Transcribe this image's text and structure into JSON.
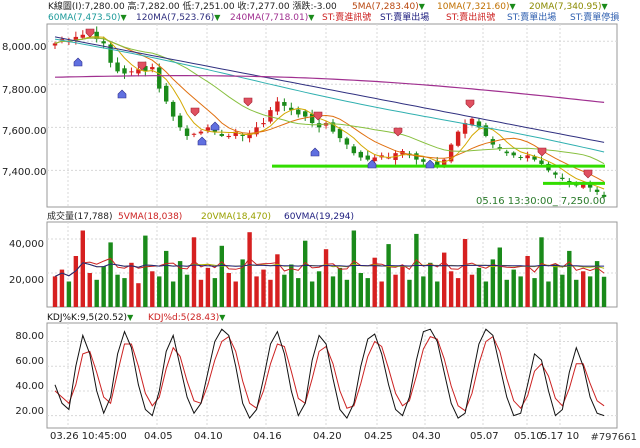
{
  "header": {
    "kline": "K線圖(I):7,280.00 高:7,282.00 低:7,251.00 收:7,277.00 漲跌:-3.00",
    "ma5": "5MA(7,283.40)",
    "ma10": "10MA(7,321.60)",
    "ma20": "20MA(7,340.95)",
    "ma60": "60MA(7,473.50)",
    "ma120": "120MA(7,523.76)",
    "ma240": "240MA(7,718.01)",
    "st1": "ST:賣進訊號",
    "st2": "ST:賣單出場",
    "st3": "ST:賣出訊號",
    "st4": "ST:賣單出場",
    "st5": "ST:賣單停損"
  },
  "volume_header": {
    "vol": "成交量(17,788)",
    "vma5": "5VMA(18,038)",
    "vma20": "20VMA(18,470)",
    "vma60": "60VMA(19,294)"
  },
  "kdj_header": {
    "kdj": "KDJ%K:9,5(20.52)",
    "kdj_d": "KDJ%d:5(28.43)"
  },
  "last_tick": "05.16 13:30:00_ 7,250.00",
  "watermark": "#797661",
  "colors": {
    "up": "#d62020",
    "down": "#1a8a1a",
    "ma5": "#d4a800",
    "ma10": "#e07010",
    "ma20": "#88c040",
    "ma60": "#30b0b0",
    "ma120": "#303080",
    "ma240": "#a03090",
    "support": "#33dd00",
    "k": "#111111",
    "d": "#cc2222"
  },
  "chart_data": [
    {
      "type": "candlestick",
      "title": "K線圖",
      "yticks": [
        8000,
        7800,
        7600,
        7400
      ],
      "ytick_labels": [
        "8,000.00",
        "7,800.00",
        "7,600.00",
        "7,400.00"
      ],
      "ylim": [
        7230,
        8080
      ],
      "x_tick_labels": [
        "03.26 10:45:00",
        "04.05",
        "04.10",
        "04.16",
        "04.20",
        "04.25",
        "04.30",
        "05.07",
        "05.10",
        "5.17 10"
      ],
      "close_path": [
        7990,
        8010,
        8000,
        8020,
        8030,
        8040,
        8010,
        7990,
        7900,
        7860,
        7850,
        7860,
        7870,
        7860,
        7880,
        7780,
        7720,
        7650,
        7600,
        7560,
        7570,
        7580,
        7600,
        7580,
        7560,
        7560,
        7580,
        7560,
        7570,
        7600,
        7620,
        7680,
        7720,
        7700,
        7680,
        7660,
        7650,
        7620,
        7600,
        7620,
        7580,
        7550,
        7520,
        7480,
        7460,
        7450,
        7460,
        7470,
        7460,
        7480,
        7490,
        7470,
        7450,
        7440,
        7430,
        7420,
        7450,
        7520,
        7580,
        7620,
        7640,
        7600,
        7560,
        7520,
        7500,
        7480,
        7470,
        7460,
        7470,
        7450,
        7430,
        7400,
        7380,
        7360,
        7340,
        7330,
        7340,
        7320,
        7300,
        7277
      ],
      "support_levels": [
        7420,
        7340
      ],
      "moving_averages": [
        {
          "name": "5MA",
          "value": 7283.4
        },
        {
          "name": "10MA",
          "value": 7321.6
        },
        {
          "name": "20MA",
          "value": 7340.95
        },
        {
          "name": "60MA",
          "value": 7473.5
        },
        {
          "name": "120MA",
          "value": 7523.76
        },
        {
          "name": "240MA",
          "value": 7718.01
        }
      ],
      "last": {
        "open": 7280,
        "high": 7282,
        "low": 7251,
        "close": 7277,
        "change": -3
      }
    },
    {
      "type": "bar",
      "title": "成交量",
      "yticks": [
        20000,
        40000
      ],
      "ytick_labels": [
        "20,000",
        "40,000"
      ],
      "ylim": [
        0,
        50000
      ],
      "volumes": [
        18000,
        22000,
        15000,
        30000,
        45000,
        20000,
        16000,
        24000,
        38000,
        19000,
        17000,
        26000,
        14000,
        42000,
        21000,
        18000,
        33000,
        15000,
        27000,
        19000,
        41000,
        16000,
        23000,
        17000,
        36000,
        20000,
        15000,
        28000,
        44000,
        18000,
        22000,
        16000,
        31000,
        19000,
        25000,
        17000,
        39000,
        15000,
        21000,
        34000,
        18000,
        23000,
        16000,
        45000,
        20000,
        17000,
        29000,
        15000,
        37000,
        19000,
        24000,
        16000,
        43000,
        18000,
        26000,
        15000,
        32000,
        21000,
        17000,
        40000,
        19000,
        23000,
        15000,
        28000,
        35000,
        16000,
        22000,
        18000,
        30000,
        17000,
        41000,
        15000,
        25000,
        19000,
        33000,
        16000,
        21000,
        18000,
        27000,
        17788
      ],
      "series": [
        {
          "name": "5VMA",
          "value": 18038
        },
        {
          "name": "20VMA",
          "value": 18470
        },
        {
          "name": "60VMA",
          "value": 19294
        }
      ]
    },
    {
      "type": "line",
      "title": "KDJ",
      "yticks": [
        20,
        40,
        60,
        80
      ],
      "ytick_labels": [
        "20.00",
        "40.00",
        "60.00",
        "80.00"
      ],
      "ylim": [
        10,
        95
      ],
      "series": [
        {
          "name": "%K",
          "last": 20.52,
          "values": [
            45,
            30,
            25,
            60,
            85,
            70,
            40,
            22,
            35,
            70,
            88,
            75,
            45,
            25,
            20,
            40,
            72,
            85,
            60,
            35,
            22,
            30,
            55,
            80,
            90,
            85,
            60,
            30,
            18,
            25,
            50,
            78,
            88,
            70,
            40,
            20,
            30,
            65,
            85,
            78,
            50,
            25,
            18,
            30,
            60,
            82,
            86,
            70,
            45,
            25,
            20,
            35,
            65,
            88,
            90,
            80,
            55,
            30,
            18,
            22,
            50,
            78,
            90,
            85,
            60,
            35,
            20,
            22,
            45,
            70,
            65,
            40,
            20,
            25,
            55,
            75,
            60,
            35,
            22,
            20
          ]
        },
        {
          "name": "%d",
          "last": 28.43,
          "values": [
            40,
            35,
            30,
            45,
            70,
            72,
            55,
            35,
            30,
            55,
            78,
            78,
            60,
            38,
            28,
            35,
            58,
            75,
            68,
            48,
            32,
            30,
            45,
            65,
            80,
            84,
            72,
            48,
            30,
            26,
            40,
            62,
            78,
            76,
            56,
            34,
            30,
            50,
            72,
            76,
            62,
            40,
            26,
            28,
            46,
            68,
            80,
            76,
            58,
            38,
            28,
            32,
            52,
            74,
            84,
            82,
            66,
            44,
            28,
            24,
            38,
            62,
            80,
            84,
            72,
            50,
            32,
            26,
            36,
            56,
            62,
            52,
            34,
            28,
            42,
            62,
            62,
            46,
            32,
            28
          ]
        }
      ]
    }
  ]
}
